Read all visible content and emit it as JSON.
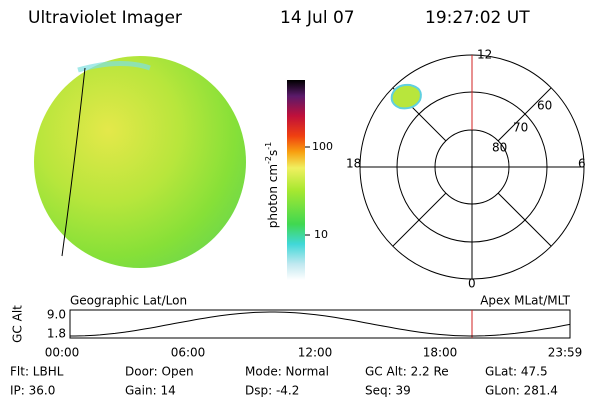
{
  "header": {
    "title": "Ultraviolet Imager",
    "date": "14 Jul 07",
    "time": "19:27:02 UT"
  },
  "colorbar": {
    "label": {
      "text": "photon cm",
      "exp1": "-2",
      "unit2": "s",
      "exp2": "-1"
    },
    "ticks": [
      "100",
      "10"
    ]
  },
  "polar": {
    "mlt_labels": [
      "12",
      "18",
      "6",
      "0"
    ],
    "mlat_labels": [
      "60",
      "70",
      "80"
    ]
  },
  "timeline": {
    "left_title": "Geographic Lat/Lon",
    "right_title": "Apex MLat/MLT",
    "y_label": "GC Alt",
    "y_ticks": [
      "9.0",
      "1.8"
    ],
    "x_ticks": [
      "00:00",
      "06:00",
      "12:00",
      "18:00",
      "23:59"
    ]
  },
  "info": [
    [
      "Flt: LBHL",
      "Door: Open",
      "Mode: Normal",
      "GC Alt: 2.2 Re",
      "GLat: 47.5"
    ],
    [
      "IP: 36.0",
      "Gain: 14",
      "Dsp: -4.2",
      "Seq: 39",
      "GLon: 281.4"
    ]
  ]
}
